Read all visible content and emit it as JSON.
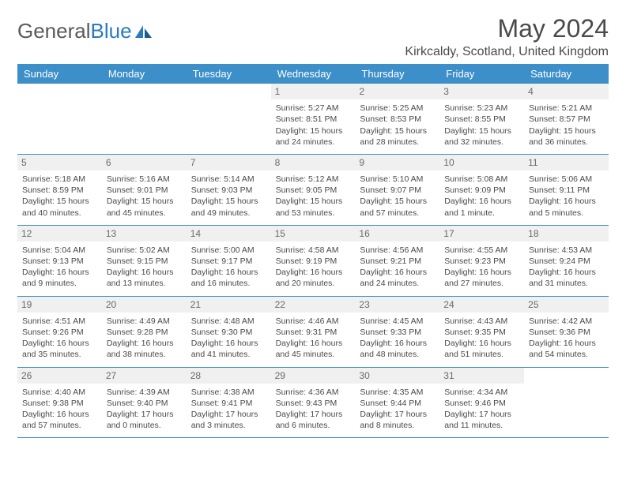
{
  "logo": {
    "text1": "General",
    "text2": "Blue"
  },
  "title": "May 2024",
  "location": "Kirkcaldy, Scotland, United Kingdom",
  "colors": {
    "header_bg": "#3d8fc9",
    "header_text": "#ffffff",
    "daynum_bg": "#f0f0f0",
    "body_text": "#4a4a4a",
    "rule": "#3d8fc9",
    "logo_blue": "#2a7ac0"
  },
  "weekdays": [
    "Sunday",
    "Monday",
    "Tuesday",
    "Wednesday",
    "Thursday",
    "Friday",
    "Saturday"
  ],
  "weeks": [
    [
      {
        "empty": true
      },
      {
        "empty": true
      },
      {
        "empty": true
      },
      {
        "day": "1",
        "sunrise": "Sunrise: 5:27 AM",
        "sunset": "Sunset: 8:51 PM",
        "daylight1": "Daylight: 15 hours",
        "daylight2": "and 24 minutes."
      },
      {
        "day": "2",
        "sunrise": "Sunrise: 5:25 AM",
        "sunset": "Sunset: 8:53 PM",
        "daylight1": "Daylight: 15 hours",
        "daylight2": "and 28 minutes."
      },
      {
        "day": "3",
        "sunrise": "Sunrise: 5:23 AM",
        "sunset": "Sunset: 8:55 PM",
        "daylight1": "Daylight: 15 hours",
        "daylight2": "and 32 minutes."
      },
      {
        "day": "4",
        "sunrise": "Sunrise: 5:21 AM",
        "sunset": "Sunset: 8:57 PM",
        "daylight1": "Daylight: 15 hours",
        "daylight2": "and 36 minutes."
      }
    ],
    [
      {
        "day": "5",
        "sunrise": "Sunrise: 5:18 AM",
        "sunset": "Sunset: 8:59 PM",
        "daylight1": "Daylight: 15 hours",
        "daylight2": "and 40 minutes."
      },
      {
        "day": "6",
        "sunrise": "Sunrise: 5:16 AM",
        "sunset": "Sunset: 9:01 PM",
        "daylight1": "Daylight: 15 hours",
        "daylight2": "and 45 minutes."
      },
      {
        "day": "7",
        "sunrise": "Sunrise: 5:14 AM",
        "sunset": "Sunset: 9:03 PM",
        "daylight1": "Daylight: 15 hours",
        "daylight2": "and 49 minutes."
      },
      {
        "day": "8",
        "sunrise": "Sunrise: 5:12 AM",
        "sunset": "Sunset: 9:05 PM",
        "daylight1": "Daylight: 15 hours",
        "daylight2": "and 53 minutes."
      },
      {
        "day": "9",
        "sunrise": "Sunrise: 5:10 AM",
        "sunset": "Sunset: 9:07 PM",
        "daylight1": "Daylight: 15 hours",
        "daylight2": "and 57 minutes."
      },
      {
        "day": "10",
        "sunrise": "Sunrise: 5:08 AM",
        "sunset": "Sunset: 9:09 PM",
        "daylight1": "Daylight: 16 hours",
        "daylight2": "and 1 minute."
      },
      {
        "day": "11",
        "sunrise": "Sunrise: 5:06 AM",
        "sunset": "Sunset: 9:11 PM",
        "daylight1": "Daylight: 16 hours",
        "daylight2": "and 5 minutes."
      }
    ],
    [
      {
        "day": "12",
        "sunrise": "Sunrise: 5:04 AM",
        "sunset": "Sunset: 9:13 PM",
        "daylight1": "Daylight: 16 hours",
        "daylight2": "and 9 minutes."
      },
      {
        "day": "13",
        "sunrise": "Sunrise: 5:02 AM",
        "sunset": "Sunset: 9:15 PM",
        "daylight1": "Daylight: 16 hours",
        "daylight2": "and 13 minutes."
      },
      {
        "day": "14",
        "sunrise": "Sunrise: 5:00 AM",
        "sunset": "Sunset: 9:17 PM",
        "daylight1": "Daylight: 16 hours",
        "daylight2": "and 16 minutes."
      },
      {
        "day": "15",
        "sunrise": "Sunrise: 4:58 AM",
        "sunset": "Sunset: 9:19 PM",
        "daylight1": "Daylight: 16 hours",
        "daylight2": "and 20 minutes."
      },
      {
        "day": "16",
        "sunrise": "Sunrise: 4:56 AM",
        "sunset": "Sunset: 9:21 PM",
        "daylight1": "Daylight: 16 hours",
        "daylight2": "and 24 minutes."
      },
      {
        "day": "17",
        "sunrise": "Sunrise: 4:55 AM",
        "sunset": "Sunset: 9:23 PM",
        "daylight1": "Daylight: 16 hours",
        "daylight2": "and 27 minutes."
      },
      {
        "day": "18",
        "sunrise": "Sunrise: 4:53 AM",
        "sunset": "Sunset: 9:24 PM",
        "daylight1": "Daylight: 16 hours",
        "daylight2": "and 31 minutes."
      }
    ],
    [
      {
        "day": "19",
        "sunrise": "Sunrise: 4:51 AM",
        "sunset": "Sunset: 9:26 PM",
        "daylight1": "Daylight: 16 hours",
        "daylight2": "and 35 minutes."
      },
      {
        "day": "20",
        "sunrise": "Sunrise: 4:49 AM",
        "sunset": "Sunset: 9:28 PM",
        "daylight1": "Daylight: 16 hours",
        "daylight2": "and 38 minutes."
      },
      {
        "day": "21",
        "sunrise": "Sunrise: 4:48 AM",
        "sunset": "Sunset: 9:30 PM",
        "daylight1": "Daylight: 16 hours",
        "daylight2": "and 41 minutes."
      },
      {
        "day": "22",
        "sunrise": "Sunrise: 4:46 AM",
        "sunset": "Sunset: 9:31 PM",
        "daylight1": "Daylight: 16 hours",
        "daylight2": "and 45 minutes."
      },
      {
        "day": "23",
        "sunrise": "Sunrise: 4:45 AM",
        "sunset": "Sunset: 9:33 PM",
        "daylight1": "Daylight: 16 hours",
        "daylight2": "and 48 minutes."
      },
      {
        "day": "24",
        "sunrise": "Sunrise: 4:43 AM",
        "sunset": "Sunset: 9:35 PM",
        "daylight1": "Daylight: 16 hours",
        "daylight2": "and 51 minutes."
      },
      {
        "day": "25",
        "sunrise": "Sunrise: 4:42 AM",
        "sunset": "Sunset: 9:36 PM",
        "daylight1": "Daylight: 16 hours",
        "daylight2": "and 54 minutes."
      }
    ],
    [
      {
        "day": "26",
        "sunrise": "Sunrise: 4:40 AM",
        "sunset": "Sunset: 9:38 PM",
        "daylight1": "Daylight: 16 hours",
        "daylight2": "and 57 minutes."
      },
      {
        "day": "27",
        "sunrise": "Sunrise: 4:39 AM",
        "sunset": "Sunset: 9:40 PM",
        "daylight1": "Daylight: 17 hours",
        "daylight2": "and 0 minutes."
      },
      {
        "day": "28",
        "sunrise": "Sunrise: 4:38 AM",
        "sunset": "Sunset: 9:41 PM",
        "daylight1": "Daylight: 17 hours",
        "daylight2": "and 3 minutes."
      },
      {
        "day": "29",
        "sunrise": "Sunrise: 4:36 AM",
        "sunset": "Sunset: 9:43 PM",
        "daylight1": "Daylight: 17 hours",
        "daylight2": "and 6 minutes."
      },
      {
        "day": "30",
        "sunrise": "Sunrise: 4:35 AM",
        "sunset": "Sunset: 9:44 PM",
        "daylight1": "Daylight: 17 hours",
        "daylight2": "and 8 minutes."
      },
      {
        "day": "31",
        "sunrise": "Sunrise: 4:34 AM",
        "sunset": "Sunset: 9:46 PM",
        "daylight1": "Daylight: 17 hours",
        "daylight2": "and 11 minutes."
      },
      {
        "empty": true
      }
    ]
  ]
}
